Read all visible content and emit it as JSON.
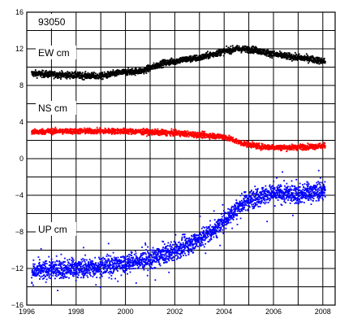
{
  "chart_data": {
    "type": "scatter",
    "title": "93050",
    "xlabel": "",
    "ylabel": "",
    "xlim": [
      1996,
      2008.5
    ],
    "ylim": [
      -16,
      16
    ],
    "grid": true,
    "x_ticks": [
      "1996",
      "1998",
      "2000",
      "2002",
      "2004",
      "2006",
      "2008"
    ],
    "y_ticks": [
      "16",
      "12",
      "8",
      "4",
      "0",
      "−4",
      "−8",
      "−12",
      "−16"
    ],
    "series": [
      {
        "name": "EW cm",
        "color": "#000000",
        "noise": 0.35,
        "points": [
          [
            1996.2,
            9.3
          ],
          [
            1997.0,
            9.2
          ],
          [
            1998.0,
            9.1
          ],
          [
            1999.0,
            9.0
          ],
          [
            1999.8,
            9.4
          ],
          [
            2000.7,
            9.6
          ],
          [
            2001.5,
            10.4
          ],
          [
            2002.3,
            10.8
          ],
          [
            2003.0,
            11.0
          ],
          [
            2003.8,
            11.6
          ],
          [
            2004.5,
            12.0
          ],
          [
            2005.2,
            11.9
          ],
          [
            2006.0,
            11.4
          ],
          [
            2006.8,
            11.1
          ],
          [
            2007.5,
            10.9
          ],
          [
            2008.1,
            10.6
          ]
        ]
      },
      {
        "name": "NS cm",
        "color": "#ff0000",
        "noise": 0.3,
        "points": [
          [
            1996.2,
            2.9
          ],
          [
            1997.0,
            3.0
          ],
          [
            1998.0,
            3.0
          ],
          [
            1999.0,
            3.0
          ],
          [
            2000.0,
            3.0
          ],
          [
            2001.0,
            2.9
          ],
          [
            2002.0,
            2.8
          ],
          [
            2003.0,
            2.6
          ],
          [
            2004.0,
            2.4
          ],
          [
            2004.7,
            1.7
          ],
          [
            2005.5,
            1.3
          ],
          [
            2006.5,
            1.2
          ],
          [
            2007.3,
            1.3
          ],
          [
            2008.1,
            1.4
          ]
        ]
      },
      {
        "name": "UP cm",
        "color": "#0000ff",
        "noise": 1.0,
        "points": [
          [
            1996.2,
            -12.4
          ],
          [
            1997.0,
            -12.1
          ],
          [
            1998.0,
            -12.0
          ],
          [
            1999.0,
            -11.8
          ],
          [
            2000.0,
            -11.4
          ],
          [
            2001.0,
            -11.0
          ],
          [
            2002.0,
            -10.1
          ],
          [
            2003.0,
            -8.8
          ],
          [
            2003.7,
            -7.6
          ],
          [
            2004.3,
            -6.0
          ],
          [
            2004.9,
            -4.6
          ],
          [
            2005.5,
            -4.0
          ],
          [
            2006.2,
            -3.8
          ],
          [
            2007.0,
            -3.9
          ],
          [
            2008.1,
            -3.4
          ]
        ]
      }
    ]
  }
}
